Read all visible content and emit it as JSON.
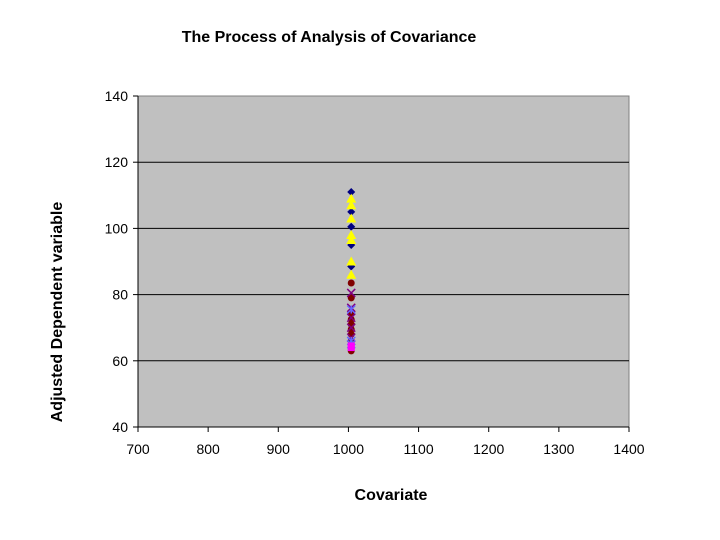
{
  "chart_data": {
    "type": "scatter",
    "title": "The Process of Analysis of Covariance",
    "xlabel": "Covariate",
    "ylabel": "Adjusted Dependent variable",
    "xlim": [
      700,
      1400
    ],
    "ylim": [
      40,
      140
    ],
    "x_ticks": [
      "700",
      "800",
      "900",
      "1000",
      "1100",
      "1200",
      "1300",
      "1400"
    ],
    "y_ticks": [
      "40",
      "60",
      "80",
      "100",
      "120",
      "140"
    ],
    "grid": "horizontal",
    "legend": "none",
    "plot_background": "#c0c0c0",
    "series": [
      {
        "marker": "diamond",
        "color": "#000080",
        "points": [
          [
            1004,
            111
          ],
          [
            1004,
            105
          ],
          [
            1004,
            100.5
          ],
          [
            1004,
            95
          ],
          [
            1004,
            88.5
          ]
        ]
      },
      {
        "marker": "triangle",
        "color": "#ffff00",
        "points": [
          [
            1004,
            109
          ],
          [
            1004,
            107
          ],
          [
            1004,
            103
          ],
          [
            1004,
            98
          ],
          [
            1004,
            96.5
          ],
          [
            1004,
            90
          ],
          [
            1004,
            86
          ]
        ]
      },
      {
        "marker": "circle",
        "color": "#800000",
        "points": [
          [
            1004,
            83.5
          ],
          [
            1004,
            79
          ],
          [
            1004,
            74.5
          ],
          [
            1004,
            72.5
          ],
          [
            1004,
            71
          ],
          [
            1004,
            69.5
          ],
          [
            1004,
            68
          ],
          [
            1004,
            66
          ],
          [
            1004,
            63
          ]
        ]
      },
      {
        "marker": "x",
        "color": "#800080",
        "points": [
          [
            1004,
            80.5
          ],
          [
            1004,
            76
          ],
          [
            1004,
            73
          ],
          [
            1004,
            70
          ],
          [
            1004,
            67
          ]
        ]
      },
      {
        "marker": "star",
        "color": "#6666ff",
        "points": [
          [
            1004,
            75.5
          ],
          [
            1004,
            66
          ],
          [
            1004,
            65
          ]
        ]
      },
      {
        "marker": "square",
        "color": "#ff00ff",
        "points": [
          [
            1004,
            64.5
          ],
          [
            1004,
            64
          ]
        ]
      }
    ]
  }
}
